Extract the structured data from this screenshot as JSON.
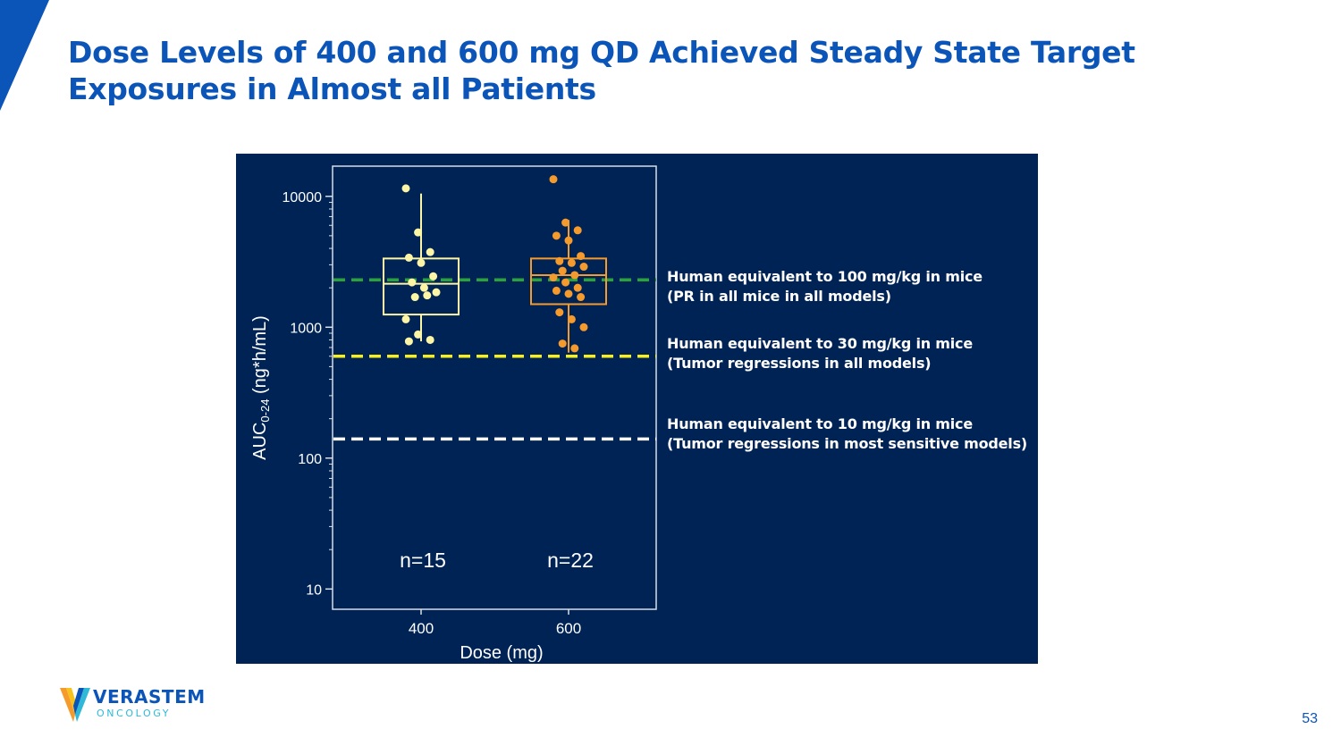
{
  "slide": {
    "title_line1": "Dose Levels of 400 and 600 mg QD Achieved Steady State Target",
    "title_line2": "Exposures in Almost all Patients",
    "page_number": "53",
    "accent_color": "#0b54b8",
    "panel_color": "#002356"
  },
  "logo": {
    "name": "VERASTEM",
    "sub": "ONCOLOGY",
    "icon": "verastem-v-logo-icon"
  },
  "chart_data": {
    "type": "box",
    "xlabel": "Dose (mg)",
    "ylabel_main": "AUC",
    "ylabel_sub": "0-24",
    "ylabel_unit": " (ng*h/mL)",
    "yscale": "log",
    "ylim": [
      7,
      17000
    ],
    "yticks": [
      10,
      100,
      1000,
      10000
    ],
    "ytick_labels": [
      "10",
      "100",
      "1000",
      "10000"
    ],
    "categories": [
      "400",
      "600"
    ],
    "groups": [
      {
        "dose": "400",
        "n_label": "n=15",
        "color": "#fcf5a6",
        "box": {
          "whisker_low": 780,
          "q1": 1250,
          "median": 2150,
          "q3": 3350,
          "whisker_high": 10500
        },
        "points": [
          11500,
          5300,
          3750,
          3400,
          3100,
          2450,
          2200,
          2000,
          1850,
          1700,
          1750,
          1150,
          880,
          800,
          780
        ]
      },
      {
        "dose": "600",
        "n_label": "n=22",
        "color": "#f59a2c",
        "box": {
          "whisker_low": 640,
          "q1": 1500,
          "median": 2500,
          "q3": 3350,
          "whisker_high": 6600
        },
        "points": [
          13500,
          6300,
          5500,
          5000,
          4600,
          3500,
          3200,
          3100,
          2900,
          2700,
          2500,
          2400,
          2200,
          2000,
          1900,
          1800,
          1700,
          1300,
          1150,
          1000,
          750,
          690
        ]
      }
    ],
    "reference_lines": [
      {
        "value": 2300,
        "color": "#2aa33a",
        "label_line1": "Human equivalent to 100 mg/kg in mice",
        "label_line2": "(PR in all mice in all models)"
      },
      {
        "value": 600,
        "color": "#f7ee1c",
        "label_line1": "Human equivalent to 30 mg/kg in mice",
        "label_line2": "(Tumor regressions in all models)"
      },
      {
        "value": 140,
        "color": "#ffffff",
        "label_line1": "Human equivalent to 10 mg/kg in mice",
        "label_line2": "(Tumor regressions in most sensitive models)"
      }
    ]
  }
}
